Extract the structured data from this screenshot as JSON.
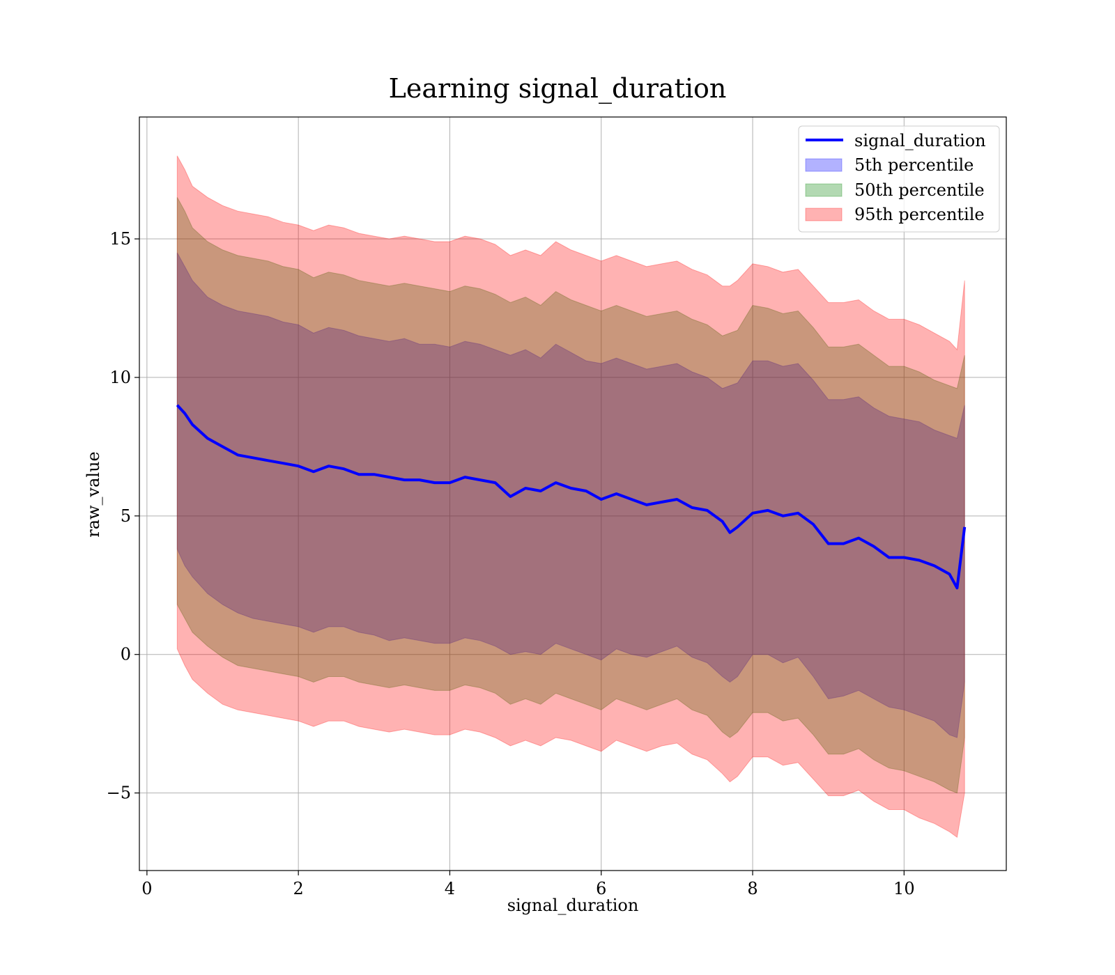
{
  "chart_data": {
    "type": "line",
    "title": "Learning signal_duration",
    "xlabel": "signal_duration",
    "ylabel": "raw_value",
    "xlim": [
      -0.1,
      11.35
    ],
    "ylim": [
      -7.8,
      19.4
    ],
    "xticks": [
      0,
      2,
      4,
      6,
      8,
      10
    ],
    "xtick_labels": [
      "0",
      "2",
      "4",
      "6",
      "8",
      "10"
    ],
    "yticks": [
      -5,
      0,
      5,
      10,
      15
    ],
    "ytick_labels": [
      "−5",
      "0",
      "5",
      "10",
      "15"
    ],
    "grid": true,
    "legend_position": "upper right",
    "x": [
      0.4,
      0.5,
      0.6,
      0.8,
      1.0,
      1.2,
      1.4,
      1.6,
      1.8,
      2.0,
      2.2,
      2.4,
      2.6,
      2.8,
      3.0,
      3.2,
      3.4,
      3.6,
      3.8,
      4.0,
      4.2,
      4.4,
      4.6,
      4.8,
      5.0,
      5.2,
      5.4,
      5.6,
      5.8,
      6.0,
      6.2,
      6.4,
      6.6,
      6.8,
      7.0,
      7.2,
      7.4,
      7.6,
      7.7,
      7.8,
      8.0,
      8.2,
      8.4,
      8.6,
      8.8,
      9.0,
      9.2,
      9.4,
      9.6,
      9.8,
      10.0,
      10.2,
      10.4,
      10.6,
      10.7,
      10.8
    ],
    "series": [
      {
        "name": "signal_duration",
        "color": "#0000ff",
        "values": [
          9.0,
          8.7,
          8.3,
          7.8,
          7.5,
          7.2,
          7.1,
          7.0,
          6.9,
          6.8,
          6.6,
          6.8,
          6.7,
          6.5,
          6.5,
          6.4,
          6.3,
          6.3,
          6.2,
          6.2,
          6.4,
          6.3,
          6.2,
          5.7,
          6.0,
          5.9,
          6.2,
          6.0,
          5.9,
          5.6,
          5.8,
          5.6,
          5.4,
          5.5,
          5.6,
          5.3,
          5.2,
          4.8,
          4.4,
          4.6,
          5.1,
          5.2,
          5.0,
          5.1,
          4.7,
          4.0,
          4.0,
          4.2,
          3.9,
          3.5,
          3.5,
          3.4,
          3.2,
          2.9,
          2.4,
          4.6
        ]
      }
    ],
    "bands": [
      {
        "name": "5th percentile",
        "color": "#0000ff",
        "lower": [
          3.8,
          3.2,
          2.8,
          2.2,
          1.8,
          1.5,
          1.3,
          1.2,
          1.1,
          1.0,
          0.8,
          1.0,
          1.0,
          0.8,
          0.7,
          0.5,
          0.6,
          0.5,
          0.4,
          0.4,
          0.6,
          0.5,
          0.3,
          0.0,
          0.1,
          0.0,
          0.4,
          0.2,
          0.0,
          -0.2,
          0.2,
          0.0,
          -0.1,
          0.1,
          0.3,
          -0.1,
          -0.3,
          -0.8,
          -1.0,
          -0.8,
          0.0,
          0.0,
          -0.3,
          -0.1,
          -0.8,
          -1.6,
          -1.5,
          -1.3,
          -1.6,
          -1.9,
          -2.0,
          -2.2,
          -2.4,
          -2.9,
          -3.0,
          -1.0
        ],
        "upper": [
          14.5,
          14.0,
          13.5,
          12.9,
          12.6,
          12.4,
          12.3,
          12.2,
          12.0,
          11.9,
          11.6,
          11.8,
          11.7,
          11.5,
          11.4,
          11.3,
          11.4,
          11.2,
          11.2,
          11.1,
          11.3,
          11.2,
          11.0,
          10.8,
          11.0,
          10.7,
          11.2,
          10.9,
          10.6,
          10.5,
          10.7,
          10.5,
          10.3,
          10.4,
          10.5,
          10.2,
          10.0,
          9.6,
          9.7,
          9.8,
          10.6,
          10.6,
          10.4,
          10.5,
          9.9,
          9.2,
          9.2,
          9.3,
          8.9,
          8.6,
          8.5,
          8.4,
          8.1,
          7.9,
          7.8,
          9.0
        ]
      },
      {
        "name": "50th percentile",
        "color": "#008000",
        "lower": [
          1.8,
          1.3,
          0.8,
          0.3,
          -0.1,
          -0.4,
          -0.5,
          -0.6,
          -0.7,
          -0.8,
          -1.0,
          -0.8,
          -0.8,
          -1.0,
          -1.1,
          -1.2,
          -1.1,
          -1.2,
          -1.3,
          -1.3,
          -1.1,
          -1.2,
          -1.4,
          -1.8,
          -1.6,
          -1.8,
          -1.4,
          -1.6,
          -1.8,
          -2.0,
          -1.6,
          -1.8,
          -2.0,
          -1.8,
          -1.6,
          -2.0,
          -2.2,
          -2.8,
          -3.0,
          -2.8,
          -2.1,
          -2.1,
          -2.4,
          -2.3,
          -2.9,
          -3.6,
          -3.6,
          -3.4,
          -3.8,
          -4.1,
          -4.2,
          -4.4,
          -4.6,
          -4.9,
          -5.0,
          -3.0
        ],
        "upper": [
          16.5,
          16.0,
          15.4,
          14.9,
          14.6,
          14.4,
          14.3,
          14.2,
          14.0,
          13.9,
          13.6,
          13.8,
          13.7,
          13.5,
          13.4,
          13.3,
          13.4,
          13.3,
          13.2,
          13.1,
          13.3,
          13.2,
          13.0,
          12.7,
          12.9,
          12.6,
          13.1,
          12.8,
          12.6,
          12.4,
          12.6,
          12.4,
          12.2,
          12.3,
          12.4,
          12.1,
          11.9,
          11.5,
          11.6,
          11.7,
          12.6,
          12.5,
          12.3,
          12.4,
          11.8,
          11.1,
          11.1,
          11.2,
          10.8,
          10.4,
          10.4,
          10.2,
          9.9,
          9.7,
          9.6,
          10.8
        ]
      },
      {
        "name": "95th percentile",
        "color": "#ff0000",
        "lower": [
          0.2,
          -0.4,
          -0.9,
          -1.4,
          -1.8,
          -2.0,
          -2.1,
          -2.2,
          -2.3,
          -2.4,
          -2.6,
          -2.4,
          -2.4,
          -2.6,
          -2.7,
          -2.8,
          -2.7,
          -2.8,
          -2.9,
          -2.9,
          -2.7,
          -2.8,
          -3.0,
          -3.3,
          -3.1,
          -3.3,
          -3.0,
          -3.1,
          -3.3,
          -3.5,
          -3.1,
          -3.3,
          -3.5,
          -3.3,
          -3.2,
          -3.6,
          -3.8,
          -4.3,
          -4.6,
          -4.4,
          -3.7,
          -3.7,
          -4.0,
          -3.9,
          -4.5,
          -5.1,
          -5.1,
          -4.9,
          -5.3,
          -5.6,
          -5.6,
          -5.9,
          -6.1,
          -6.4,
          -6.6,
          -5.0
        ],
        "upper": [
          18.0,
          17.5,
          16.9,
          16.5,
          16.2,
          16.0,
          15.9,
          15.8,
          15.6,
          15.5,
          15.3,
          15.5,
          15.4,
          15.2,
          15.1,
          15.0,
          15.1,
          15.0,
          14.9,
          14.9,
          15.1,
          15.0,
          14.8,
          14.4,
          14.6,
          14.4,
          14.9,
          14.6,
          14.4,
          14.2,
          14.4,
          14.2,
          14.0,
          14.1,
          14.2,
          13.9,
          13.7,
          13.3,
          13.3,
          13.5,
          14.1,
          14.0,
          13.8,
          13.9,
          13.3,
          12.7,
          12.7,
          12.8,
          12.4,
          12.1,
          12.1,
          11.9,
          11.6,
          11.3,
          11.0,
          13.5
        ]
      }
    ]
  }
}
